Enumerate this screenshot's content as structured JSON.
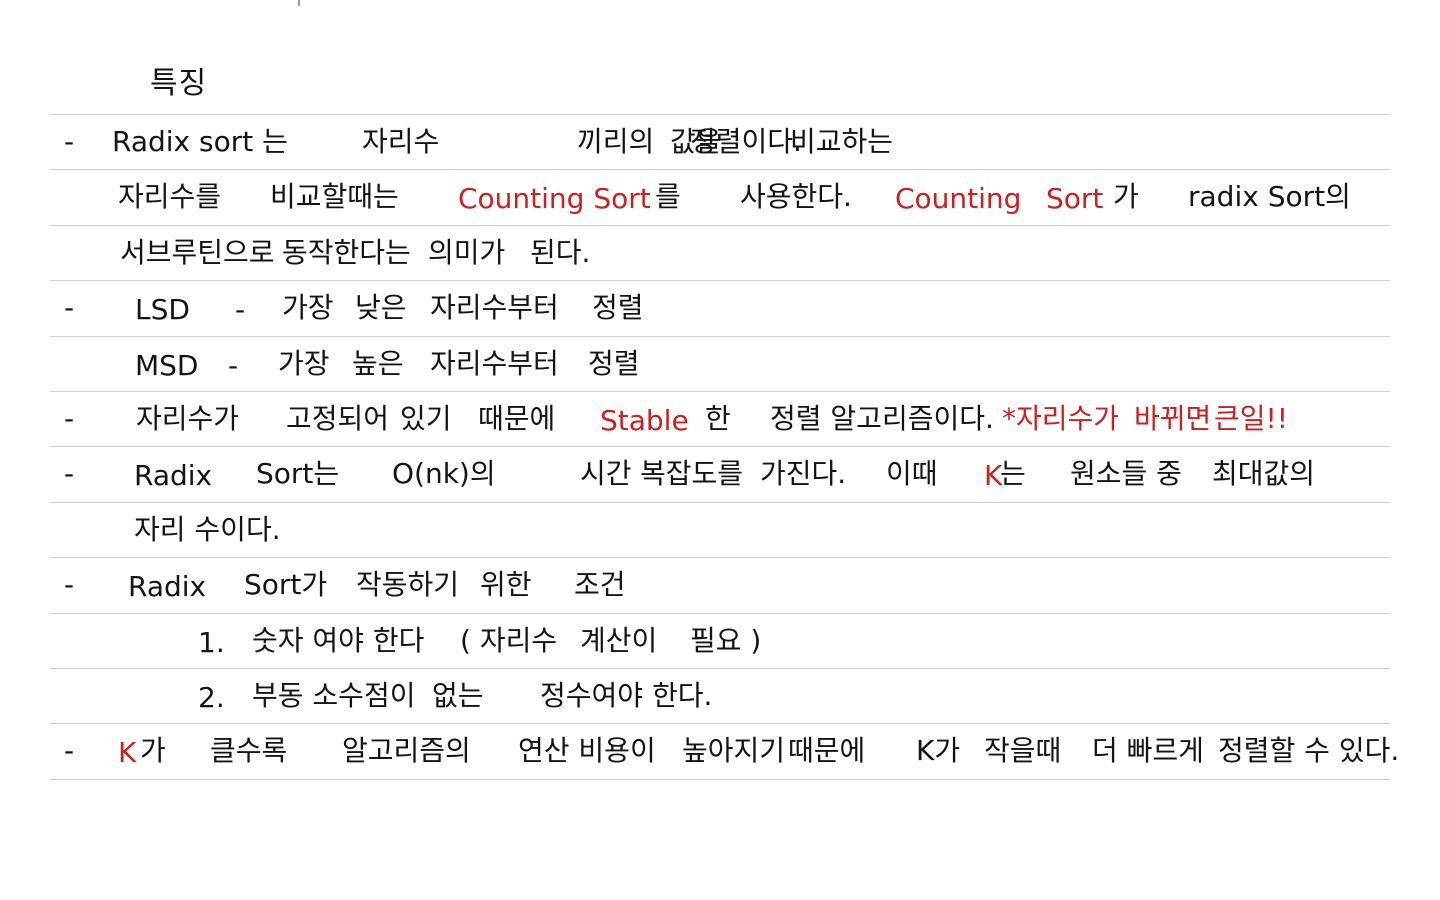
{
  "note": {
    "heading": "특징",
    "colors": {
      "ink": "#141414",
      "highlight": "#cc1f1f",
      "ruled_line": "#cfcfcf"
    },
    "lines": [
      {
        "bullet": "-",
        "segments": [
          {
            "text": "Radix sort 는",
            "red": false
          },
          {
            "text": "자리수",
            "red": false
          },
          {
            "text": "끼리의",
            "red": false
          },
          {
            "text": "값을",
            "red": false
          },
          {
            "text": "비교하는",
            "red": false
          },
          {
            "text": "정렬이다.",
            "red": false
          }
        ]
      },
      {
        "bullet": "",
        "segments": [
          {
            "text": "자리수를",
            "red": false
          },
          {
            "text": "비교할때는",
            "red": false
          },
          {
            "text": "Counting Sort",
            "red": true
          },
          {
            "text": "를",
            "red": false
          },
          {
            "text": "사용한다.",
            "red": false
          },
          {
            "text": "Counting",
            "red": true
          },
          {
            "text": "Sort",
            "red": true
          },
          {
            "text": "가",
            "red": false
          },
          {
            "text": "radix Sort의",
            "red": false
          }
        ]
      },
      {
        "bullet": "",
        "segments": [
          {
            "text": "서브루틴으로",
            "red": false
          },
          {
            "text": "동작한다는",
            "red": false
          },
          {
            "text": "의미가",
            "red": false
          },
          {
            "text": "된다.",
            "red": false
          }
        ]
      },
      {
        "bullet": "-",
        "segments": [
          {
            "text": "LSD",
            "red": false
          },
          {
            "text": "-",
            "red": false
          },
          {
            "text": "가장",
            "red": false
          },
          {
            "text": "낮은",
            "red": false
          },
          {
            "text": "자리수부터",
            "red": false
          },
          {
            "text": "정렬",
            "red": false
          }
        ]
      },
      {
        "bullet": "",
        "segments": [
          {
            "text": "MSD",
            "red": false
          },
          {
            "text": "-",
            "red": false
          },
          {
            "text": "가장",
            "red": false
          },
          {
            "text": "높은",
            "red": false
          },
          {
            "text": "자리수부터",
            "red": false
          },
          {
            "text": "정렬",
            "red": false
          }
        ]
      },
      {
        "bullet": "-",
        "segments": [
          {
            "text": "자리수가",
            "red": false
          },
          {
            "text": "고정되어",
            "red": false
          },
          {
            "text": "있기",
            "red": false
          },
          {
            "text": "때문에",
            "red": false
          },
          {
            "text": "Stable",
            "red": true
          },
          {
            "text": "한",
            "red": false
          },
          {
            "text": "정렬 알고리즘이다.",
            "red": false
          },
          {
            "text": "*자리수가",
            "red": true
          },
          {
            "text": "바뀌면",
            "red": true
          },
          {
            "text": "큰일!!",
            "red": true
          }
        ]
      },
      {
        "bullet": "-",
        "segments": [
          {
            "text": "Radix",
            "red": false
          },
          {
            "text": "Sort는",
            "red": false
          },
          {
            "text": "O(nk)의",
            "red": false
          },
          {
            "text": "시간",
            "red": false
          },
          {
            "text": "복잡도를",
            "red": false
          },
          {
            "text": "가진다.",
            "red": false
          },
          {
            "text": "이때",
            "red": false
          },
          {
            "text": "K",
            "red": true
          },
          {
            "text": "는",
            "red": false
          },
          {
            "text": "원소들 중",
            "red": false
          },
          {
            "text": "최대값의",
            "red": false
          }
        ]
      },
      {
        "bullet": "",
        "segments": [
          {
            "text": "자리 수이다.",
            "red": false
          }
        ]
      },
      {
        "bullet": "-",
        "segments": [
          {
            "text": "Radix",
            "red": false
          },
          {
            "text": "Sort가",
            "red": false
          },
          {
            "text": "작동하기",
            "red": false
          },
          {
            "text": "위한",
            "red": false
          },
          {
            "text": "조건",
            "red": false
          }
        ]
      },
      {
        "bullet": "",
        "segments": [
          {
            "text": "1.",
            "red": false
          },
          {
            "text": "숫자 여야 한다",
            "red": false
          },
          {
            "text": "( 자리수",
            "red": false
          },
          {
            "text": "계산이",
            "red": false
          },
          {
            "text": "필요 )",
            "red": false
          }
        ]
      },
      {
        "bullet": "",
        "segments": [
          {
            "text": "2.",
            "red": false
          },
          {
            "text": "부동 소수점이",
            "red": false
          },
          {
            "text": "없는",
            "red": false
          },
          {
            "text": "정수여야 한다.",
            "red": false
          }
        ]
      },
      {
        "bullet": "-",
        "segments": [
          {
            "text": "K",
            "red": true
          },
          {
            "text": "가",
            "red": false
          },
          {
            "text": "클수록",
            "red": false
          },
          {
            "text": "알고리즘의",
            "red": false
          },
          {
            "text": "연산 비용이",
            "red": false
          },
          {
            "text": "높아지기",
            "red": false
          },
          {
            "text": "때문에",
            "red": false
          },
          {
            "text": "K가",
            "red": false
          },
          {
            "text": "작을때",
            "red": false
          },
          {
            "text": "더 빠르게",
            "red": false
          },
          {
            "text": "정렬할 수 있다.",
            "red": false
          }
        ]
      }
    ]
  }
}
